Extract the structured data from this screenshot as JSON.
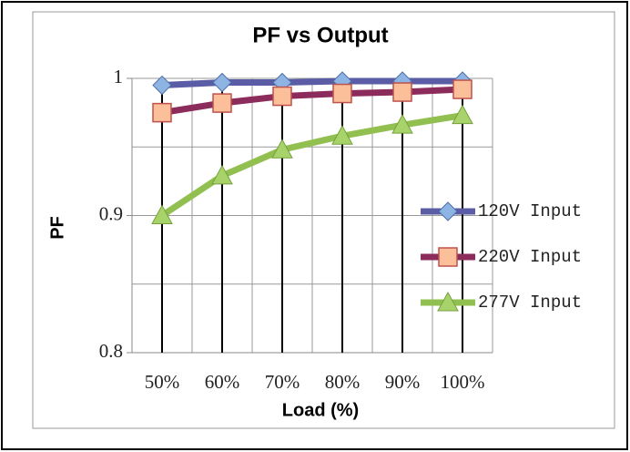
{
  "chart_data": {
    "type": "line",
    "title": "PF vs Output",
    "x_label": "Load (%)",
    "y_label": "PF",
    "categories": [
      "50%",
      "60%",
      "70%",
      "80%",
      "90%",
      "100%"
    ],
    "series": [
      {
        "name": "120V Input",
        "color": "#5a5da6",
        "marker_color": "#8db4e2",
        "marker": "diamond",
        "values": [
          0.995,
          0.997,
          0.997,
          0.998,
          0.998,
          0.998
        ]
      },
      {
        "name": "220V Input",
        "color": "#8c2c5c",
        "marker_color": "#fbc09a",
        "marker": "square",
        "values": [
          0.975,
          0.982,
          0.987,
          0.989,
          0.99,
          0.992
        ]
      },
      {
        "name": "277V Input",
        "color": "#92c050",
        "marker_color": "#a8d26a",
        "marker": "triangle",
        "values": [
          0.9,
          0.929,
          0.948,
          0.958,
          0.966,
          0.973
        ]
      }
    ],
    "ylim": [
      0.8,
      1
    ],
    "yticks": [
      0.8,
      0.9,
      1
    ],
    "minor_yticks": [
      0.85,
      0.95
    ],
    "grid": true,
    "drop_lines": true,
    "legend": "right"
  }
}
